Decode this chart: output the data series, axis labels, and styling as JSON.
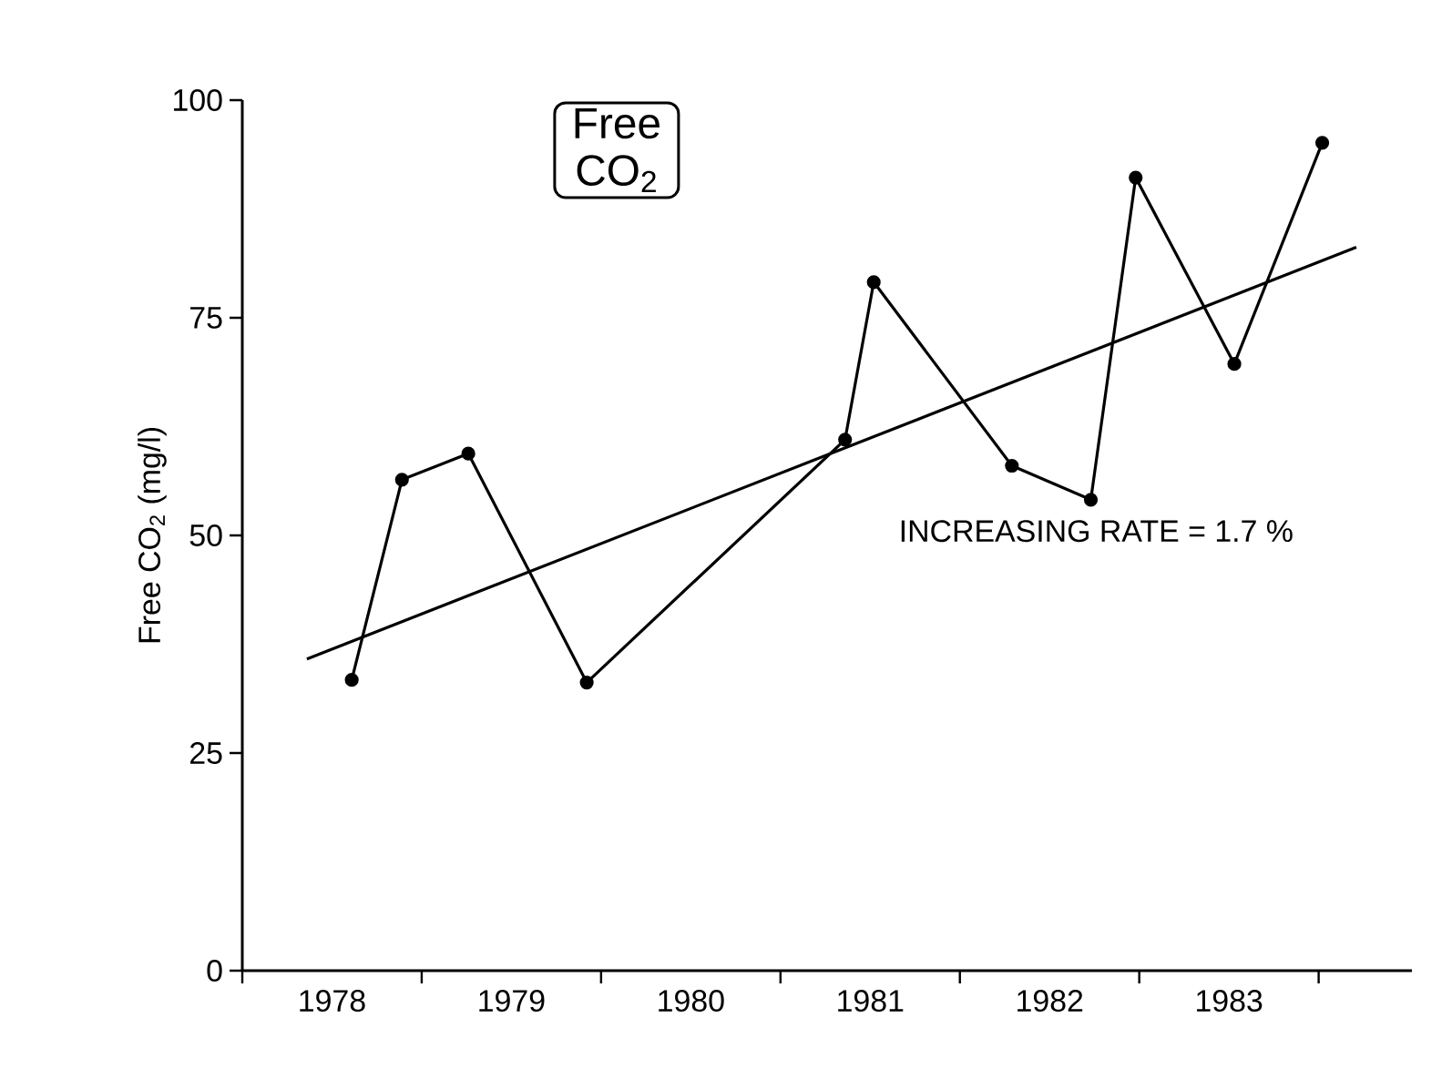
{
  "chart_data": {
    "type": "line",
    "title": "Free CO$_{2}$",
    "ylabel": "Free CO$_{2}$ (mg/l)",
    "annotations": [
      "INCREASING RATE = 1.7 %"
    ],
    "xlim": [
      1978,
      1984.52
    ],
    "ylim": [
      0,
      100
    ],
    "xticks": [
      {
        "value": 1978,
        "label": null
      },
      {
        "value": 1979,
        "label": null
      },
      {
        "value": 1980,
        "label": null
      },
      {
        "value": 1981,
        "label": null
      },
      {
        "value": 1982,
        "label": null
      },
      {
        "value": 1983,
        "label": null
      },
      {
        "value": 1984,
        "label": null
      },
      {
        "value": 1978.5,
        "label": "1978"
      },
      {
        "value": 1979.5,
        "label": "1979"
      },
      {
        "value": 1980.5,
        "label": "1980"
      },
      {
        "value": 1981.5,
        "label": "1981"
      },
      {
        "value": 1982.5,
        "label": "1982"
      },
      {
        "value": 1983.5,
        "label": "1983"
      }
    ],
    "yticks": [
      0,
      25,
      50,
      75,
      100
    ],
    "grid": false,
    "marker": "circle",
    "line_style": "solid",
    "series": [
      {
        "color": "#000000",
        "x": [
          1978.61,
          1978.89,
          1979.26,
          1979.92,
          1981.36,
          1981.52,
          1982.29,
          1982.73,
          1982.98,
          1983.53,
          1984.02
        ],
        "values": [
          33.4,
          56.4,
          59.4,
          33.1,
          61,
          79.1,
          58,
          54.1,
          91.1,
          69.7,
          95.1
        ]
      },
      {
        "color": "#000000",
        "marker": "none",
        "x": [
          1978.36,
          1984.21
        ],
        "values": [
          35.8,
          83.1
        ]
      }
    ]
  }
}
